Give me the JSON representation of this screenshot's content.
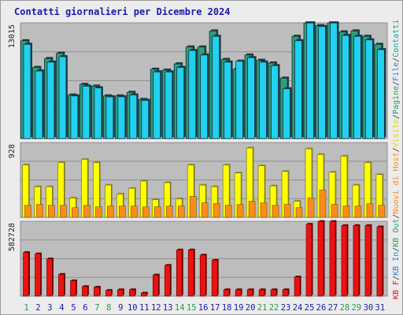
{
  "title": "Contatti giornalieri per Dicembre 2024",
  "chart_data": [
    {
      "type": "bar",
      "panel": "top",
      "ymax_label": "13015",
      "ylim": [
        0,
        13015
      ],
      "categories": [
        "1",
        "2",
        "3",
        "4",
        "5",
        "6",
        "7",
        "8",
        "9",
        "10",
        "11",
        "12",
        "13",
        "14",
        "15",
        "16",
        "17",
        "18",
        "19",
        "20",
        "21",
        "22",
        "23",
        "24",
        "25",
        "26",
        "27",
        "28",
        "29",
        "30",
        "31"
      ],
      "series": [
        {
          "name": "Pagine",
          "color": "#2f9e7d",
          "values": [
            11000,
            8000,
            9000,
            9600,
            4900,
            6100,
            5900,
            4800,
            4800,
            5200,
            4400,
            7800,
            7700,
            8400,
            10300,
            10300,
            12100,
            8900,
            7800,
            9400,
            8800,
            8500,
            6800,
            11500,
            13000,
            12700,
            13000,
            12000,
            12100,
            11500,
            10600
          ]
        },
        {
          "name": "File",
          "color": "#22d0f0",
          "values": [
            10600,
            7600,
            8600,
            9200,
            4800,
            5900,
            5700,
            4700,
            4700,
            4900,
            4300,
            7500,
            7500,
            8000,
            9900,
            9400,
            11500,
            8600,
            8700,
            9100,
            8600,
            8200,
            5600,
            11000,
            13000,
            12600,
            13000,
            11600,
            11500,
            11100,
            10000
          ]
        }
      ]
    },
    {
      "type": "bar",
      "panel": "middle",
      "ymax_label": "928",
      "ylim": [
        0,
        928
      ],
      "categories": [
        "1",
        "2",
        "3",
        "4",
        "5",
        "6",
        "7",
        "8",
        "9",
        "10",
        "11",
        "12",
        "13",
        "14",
        "15",
        "16",
        "17",
        "18",
        "19",
        "20",
        "21",
        "22",
        "23",
        "24",
        "25",
        "26",
        "27",
        "28",
        "29",
        "30",
        "31"
      ],
      "series": [
        {
          "name": "Visite",
          "color": "#ffff00",
          "values": [
            650,
            380,
            380,
            680,
            240,
            720,
            680,
            400,
            290,
            360,
            450,
            220,
            430,
            230,
            650,
            400,
            380,
            650,
            550,
            860,
            640,
            390,
            570,
            200,
            850,
            780,
            560,
            760,
            400,
            680,
            530
          ]
        },
        {
          "name": "Host",
          "color": "#ff8c1a",
          "values": [
            150,
            160,
            150,
            150,
            120,
            150,
            130,
            140,
            140,
            140,
            130,
            130,
            140,
            140,
            260,
            180,
            170,
            150,
            160,
            200,
            180,
            150,
            160,
            120,
            240,
            340,
            160,
            140,
            140,
            170,
            150
          ]
        }
      ]
    },
    {
      "type": "bar",
      "panel": "bottom",
      "ymax_label": "582728",
      "ylim": [
        0,
        582728
      ],
      "categories": [
        "1",
        "2",
        "3",
        "4",
        "5",
        "6",
        "7",
        "8",
        "9",
        "10",
        "11",
        "12",
        "13",
        "14",
        "15",
        "16",
        "17",
        "18",
        "19",
        "20",
        "21",
        "22",
        "23",
        "24",
        "25",
        "26",
        "27",
        "28",
        "29",
        "30",
        "31"
      ],
      "series": [
        {
          "name": "KB F",
          "color": "#ee1111",
          "values": [
            340000,
            330000,
            290000,
            170000,
            120000,
            75000,
            70000,
            45000,
            50000,
            50000,
            24000,
            165000,
            240000,
            360000,
            360000,
            320000,
            280000,
            50000,
            50000,
            50000,
            50000,
            50000,
            50000,
            150000,
            560000,
            582000,
            582000,
            550000,
            550000,
            550000,
            540000
          ]
        }
      ]
    }
  ],
  "legend": {
    "kb_f": "KB F",
    "kb_in": "KB In",
    "kb_out": "KB Out",
    "nuovi_host": "Nuovi di Host",
    "visite": "Visite",
    "pagine": "Pagine",
    "file": "File",
    "contatti": "Contatti",
    "sep": "/",
    "colors": {
      "kb_f": "#ee1111",
      "kb_in": "#2f7fe0",
      "kb_out": "#22a060",
      "nuovi_host": "#ff8c1a",
      "visite": "#dddd00",
      "pagine": "#22a060",
      "file": "#2f7fe0",
      "contatti": "#22a0a0"
    }
  },
  "weekend_color": "#2a9a5a",
  "weekday_color": "#1a1ab0",
  "weekend_days": [
    "1",
    "7",
    "8",
    "14",
    "15",
    "21",
    "22",
    "28",
    "29"
  ]
}
